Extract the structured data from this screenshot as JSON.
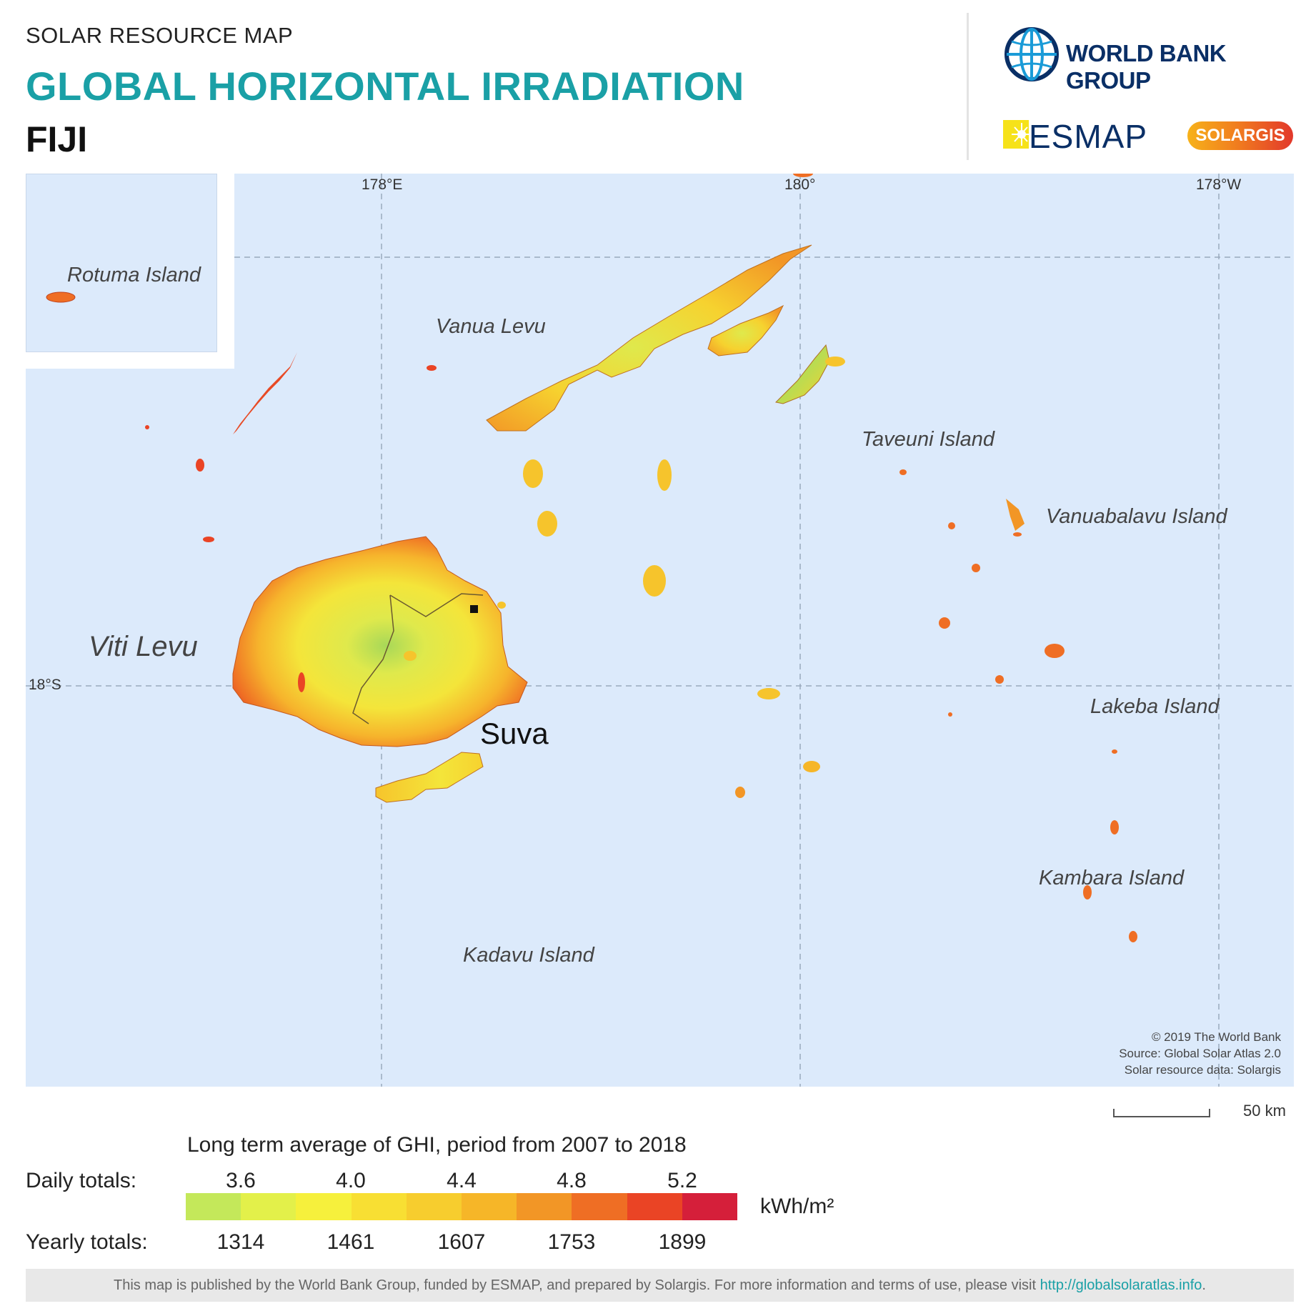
{
  "header": {
    "kicker": "SOLAR RESOURCE MAP",
    "title": "GLOBAL HORIZONTAL IRRADIATION",
    "country": "FIJI"
  },
  "logos": {
    "world_bank": "WORLD BANK GROUP",
    "esmap": "ESMAP",
    "solargis": "SOLARGIS"
  },
  "map": {
    "graticule_labels": {
      "lon_178e": "178°E",
      "lon_180": "180°",
      "lon_178w": "178°W",
      "lat_18s": "18°S"
    },
    "islands": {
      "rotuma": "Rotuma Island",
      "vanua_levu": "Vanua Levu",
      "taveuni": "Taveuni Island",
      "vanuabalavu": "Vanuabalavu Island",
      "viti_levu": "Viti Levu",
      "lakeba": "Lakeba Island",
      "kambara": "Kambara Island",
      "kadavu": "Kadavu Island"
    },
    "city": "Suva",
    "credits": {
      "line1": "© 2019 The World Bank",
      "line2": "Source: Global Solar Atlas 2.0",
      "line3": "Solar resource data: Solargis"
    },
    "scale_label": "50 km"
  },
  "legend": {
    "title": "Long term average of GHI, period from 2007 to 2018",
    "daily_label": "Daily totals:",
    "yearly_label": "Yearly totals:",
    "daily_ticks": [
      "3.6",
      "4.0",
      "4.4",
      "4.8",
      "5.2"
    ],
    "yearly_ticks": [
      "1314",
      "1461",
      "1607",
      "1753",
      "1899"
    ],
    "unit": "kWh/m²",
    "colors": [
      "#c4e85a",
      "#e3f04a",
      "#f6f03c",
      "#f8df33",
      "#f7cd2e",
      "#f6b628",
      "#f29626",
      "#ef6e24",
      "#ea4425",
      "#d51f3a"
    ]
  },
  "footer": {
    "text": "This map is published by the World Bank Group, funded by ESMAP, and prepared by Solargis. For more information and terms of use, please visit",
    "link": "http://globalsolaratlas.info",
    "end": "."
  }
}
